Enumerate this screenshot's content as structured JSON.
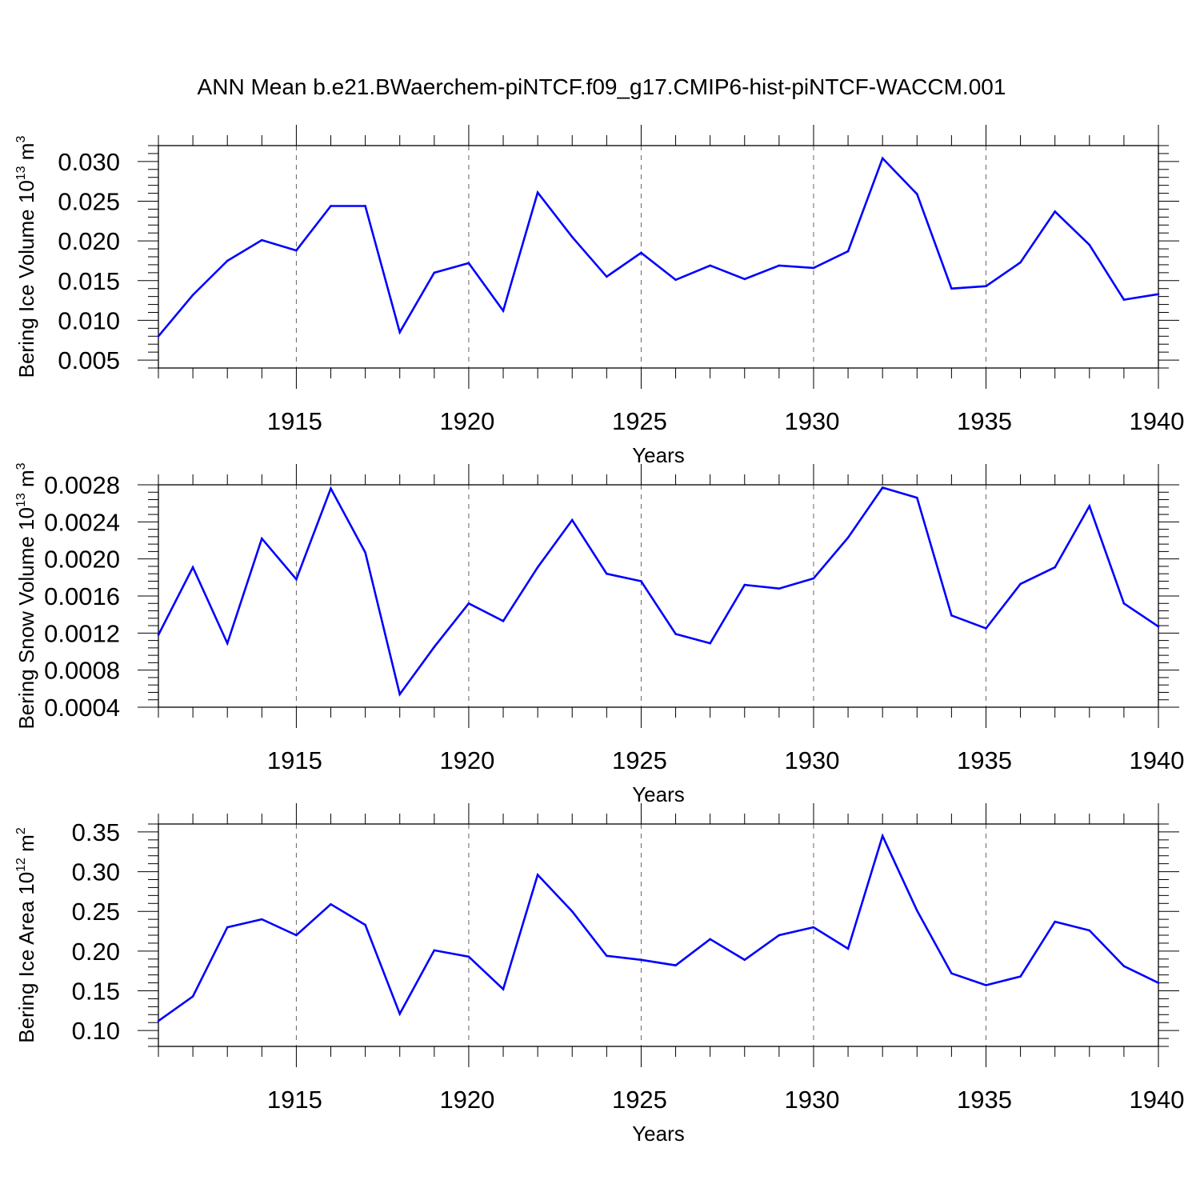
{
  "title": "ANN Mean b.e21.BWaerchem-piNTCF.f09_g17.CMIP6-hist-piNTCF-WACCM.001",
  "line_color": "#0000ff",
  "chart_data": [
    {
      "type": "line",
      "ylabel_main": "Bering Ice Volume 10",
      "ylabel_exp": "13",
      "ylabel_unit": " m",
      "ylabel_unit_exp": "3",
      "xlabel": "Years",
      "xlim": [
        1911,
        1940
      ],
      "ylim": [
        0.004,
        0.032
      ],
      "yticks": [
        0.005,
        0.01,
        0.015,
        0.02,
        0.025,
        0.03
      ],
      "ytick_labels": [
        "0.005",
        "0.010",
        "0.015",
        "0.020",
        "0.025",
        "0.030"
      ],
      "xticks": [
        1915,
        1920,
        1925,
        1930,
        1935,
        1940
      ],
      "xtick_labels": [
        "1915",
        "1920",
        "1925",
        "1930",
        "1935",
        "1940"
      ],
      "grid_x": true,
      "x": [
        1911,
        1912,
        1913,
        1914,
        1915,
        1916,
        1917,
        1918,
        1919,
        1920,
        1921,
        1922,
        1923,
        1924,
        1925,
        1926,
        1927,
        1928,
        1929,
        1930,
        1931,
        1932,
        1933,
        1934,
        1935,
        1936,
        1937,
        1938,
        1939,
        1940
      ],
      "y": [
        0.008,
        0.0132,
        0.0175,
        0.0201,
        0.0188,
        0.0244,
        0.0244,
        0.0085,
        0.016,
        0.0172,
        0.0112,
        0.0261,
        0.0205,
        0.0155,
        0.0185,
        0.0151,
        0.0169,
        0.0152,
        0.0169,
        0.0166,
        0.0187,
        0.0304,
        0.0259,
        0.014,
        0.0143,
        0.0173,
        0.0237,
        0.0195,
        0.0126,
        0.0133
      ]
    },
    {
      "type": "line",
      "ylabel_main": "Bering Snow Volume 10",
      "ylabel_exp": "13",
      "ylabel_unit": " m",
      "ylabel_unit_exp": "3",
      "xlabel": "Years",
      "xlim": [
        1911,
        1940
      ],
      "ylim": [
        0.0004,
        0.0028
      ],
      "yticks": [
        0.0004,
        0.0008,
        0.0012,
        0.0016,
        0.002,
        0.0024,
        0.0028
      ],
      "ytick_labels": [
        "0.0004",
        "0.0008",
        "0.0012",
        "0.0016",
        "0.0020",
        "0.0024",
        "0.0028"
      ],
      "xticks": [
        1915,
        1920,
        1925,
        1930,
        1935,
        1940
      ],
      "xtick_labels": [
        "1915",
        "1920",
        "1925",
        "1930",
        "1935",
        "1940"
      ],
      "grid_x": true,
      "x": [
        1911,
        1912,
        1913,
        1914,
        1915,
        1916,
        1917,
        1918,
        1919,
        1920,
        1921,
        1922,
        1923,
        1924,
        1925,
        1926,
        1927,
        1928,
        1929,
        1930,
        1931,
        1932,
        1933,
        1934,
        1935,
        1936,
        1937,
        1938,
        1939,
        1940
      ],
      "y": [
        0.00118,
        0.00191,
        0.00109,
        0.00222,
        0.00178,
        0.00276,
        0.00207,
        0.00054,
        0.00105,
        0.00152,
        0.00133,
        0.00191,
        0.00242,
        0.00184,
        0.00176,
        0.00119,
        0.00109,
        0.00172,
        0.00168,
        0.00179,
        0.00223,
        0.00277,
        0.00266,
        0.00139,
        0.00125,
        0.00173,
        0.00191,
        0.00257,
        0.00152,
        0.00127
      ]
    },
    {
      "type": "line",
      "ylabel_main": "Bering Ice Area 10",
      "ylabel_exp": "12",
      "ylabel_unit": " m",
      "ylabel_unit_exp": "2",
      "xlabel": "Years",
      "xlim": [
        1911,
        1940
      ],
      "ylim": [
        0.08,
        0.36
      ],
      "yticks": [
        0.1,
        0.15,
        0.2,
        0.25,
        0.3,
        0.35
      ],
      "ytick_labels": [
        "0.10",
        "0.15",
        "0.20",
        "0.25",
        "0.30",
        "0.35"
      ],
      "xticks": [
        1915,
        1920,
        1925,
        1930,
        1935,
        1940
      ],
      "xtick_labels": [
        "1915",
        "1920",
        "1925",
        "1930",
        "1935",
        "1940"
      ],
      "grid_x": true,
      "x": [
        1911,
        1912,
        1913,
        1914,
        1915,
        1916,
        1917,
        1918,
        1919,
        1920,
        1921,
        1922,
        1923,
        1924,
        1925,
        1926,
        1927,
        1928,
        1929,
        1930,
        1931,
        1932,
        1933,
        1934,
        1935,
        1936,
        1937,
        1938,
        1939,
        1940
      ],
      "y": [
        0.112,
        0.143,
        0.23,
        0.24,
        0.22,
        0.259,
        0.233,
        0.121,
        0.201,
        0.193,
        0.152,
        0.296,
        0.25,
        0.194,
        0.189,
        0.182,
        0.215,
        0.189,
        0.22,
        0.23,
        0.203,
        0.345,
        0.251,
        0.172,
        0.157,
        0.168,
        0.237,
        0.226,
        0.181,
        0.16
      ]
    }
  ]
}
